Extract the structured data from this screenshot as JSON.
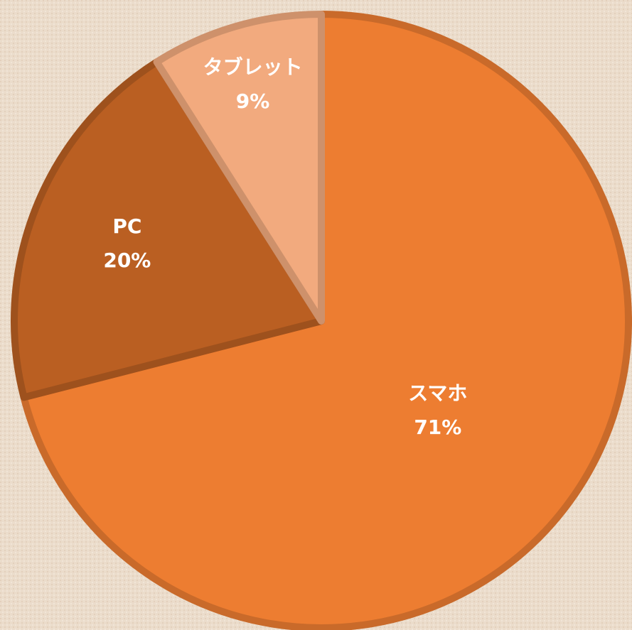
{
  "chart_data": {
    "type": "pie",
    "categories": [
      "スマホ",
      "PC",
      "タブレット"
    ],
    "values": [
      71,
      20,
      9
    ],
    "value_labels": [
      "71%",
      "20%",
      "9%"
    ],
    "colors": [
      "#ED7D31",
      "#BA5F22",
      "#F2AA7E"
    ]
  }
}
